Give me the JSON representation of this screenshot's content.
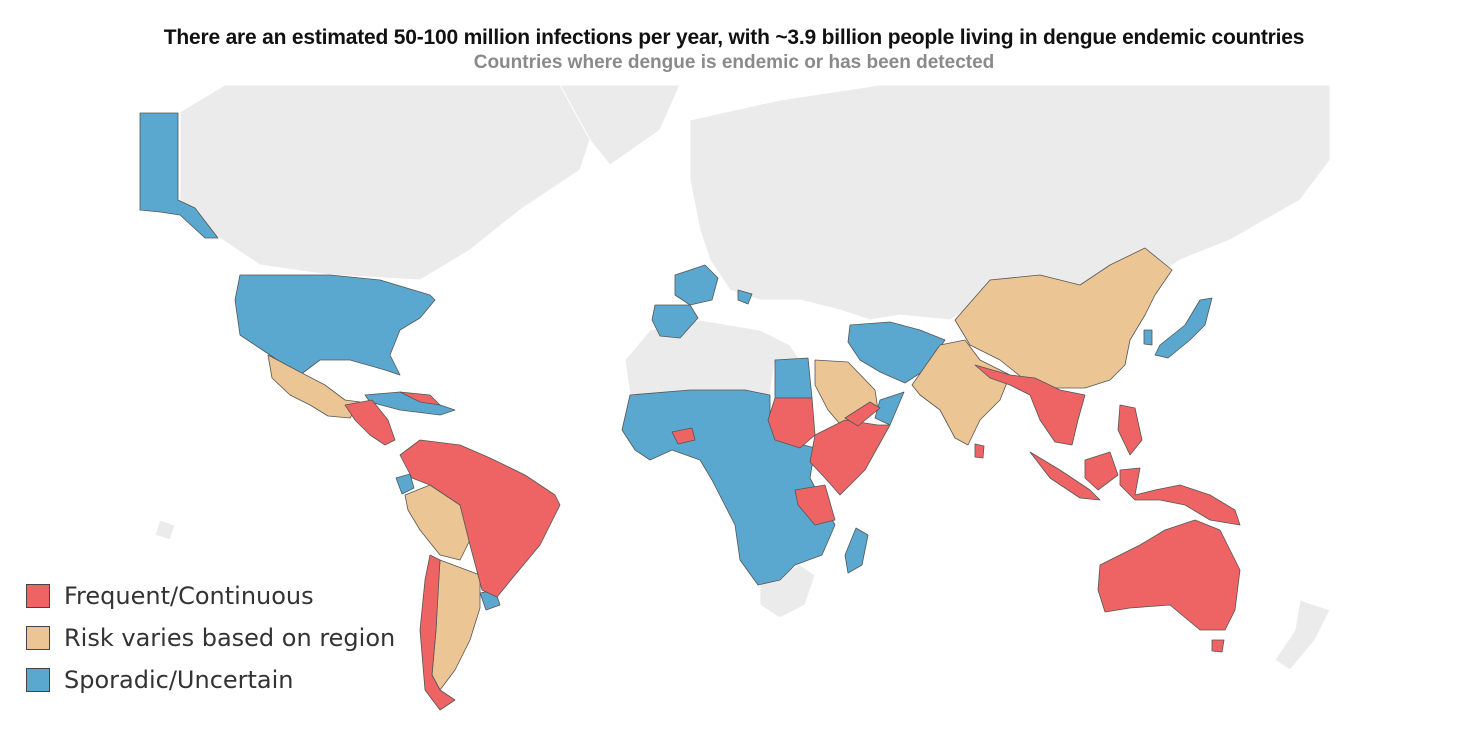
{
  "title": "There are an estimated 50-100 million infections per year, with ~3.9 billion people living in dengue endemic countries",
  "subtitle": "Countries where dengue is endemic or has been detected",
  "colors": {
    "frequent": "#ee6464",
    "risk": "#ecc594",
    "sporadic": "#5aa8d0",
    "land": "#ebebeb",
    "border": "#555555"
  },
  "legend": [
    {
      "label": "Frequent/Continuous",
      "color": "#ee6464"
    },
    {
      "label": "Risk varies based on region",
      "color": "#ecc594"
    },
    {
      "label": "Sporadic/Uncertain",
      "color": "#5aa8d0"
    }
  ]
}
